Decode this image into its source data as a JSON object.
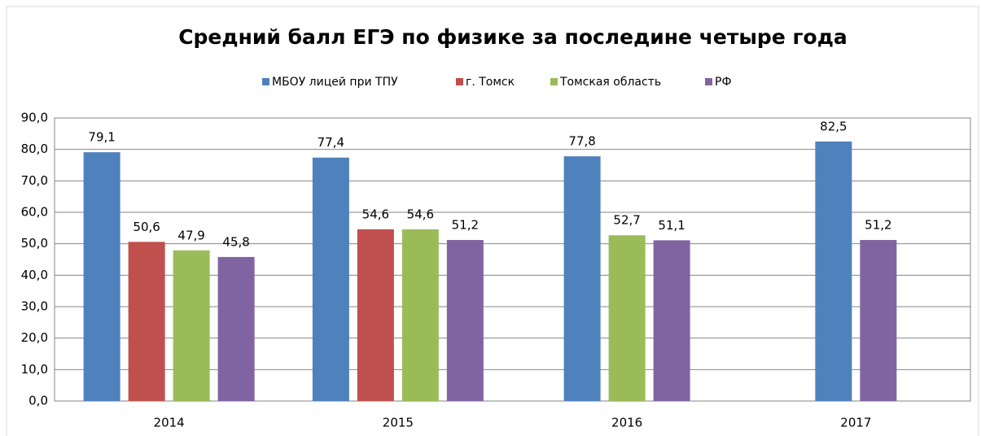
{
  "chart_data": {
    "type": "bar",
    "title": "Средний балл ЕГЭ по физике за последине четыре года",
    "categories": [
      "2014",
      "2015",
      "2016",
      "2017"
    ],
    "series": [
      {
        "name": "МБОУ лицей при ТПУ",
        "color": "#4f81bd",
        "values": [
          79.1,
          77.4,
          77.8,
          82.5
        ],
        "value_labels": [
          "79,1",
          "77,4",
          "77,8",
          "82,5"
        ]
      },
      {
        "name": "г. Томск",
        "color": "#c0504d",
        "values": [
          50.6,
          54.6,
          null,
          null
        ],
        "value_labels": [
          "50,6",
          "54,6",
          null,
          null
        ]
      },
      {
        "name": "Томская область",
        "color": "#9bbb59",
        "values": [
          47.9,
          54.6,
          52.7,
          null
        ],
        "value_labels": [
          "47,9",
          "54,6",
          "52,7",
          null
        ]
      },
      {
        "name": "РФ",
        "color": "#8064a2",
        "values": [
          45.8,
          51.2,
          51.1,
          51.2
        ],
        "value_labels": [
          "45,8",
          "51,2",
          "51,1",
          "51,2"
        ]
      }
    ],
    "ylim": [
      0,
      90
    ],
    "yticks": [
      {
        "value": 0,
        "label": "0,0"
      },
      {
        "value": 10,
        "label": "10,0"
      },
      {
        "value": 20,
        "label": "20,0"
      },
      {
        "value": 30,
        "label": "30,0"
      },
      {
        "value": 40,
        "label": "40,0"
      },
      {
        "value": 50,
        "label": "50,0"
      },
      {
        "value": 60,
        "label": "60,0"
      },
      {
        "value": 70,
        "label": "70,0"
      },
      {
        "value": 80,
        "label": "80,0"
      },
      {
        "value": 90,
        "label": "90,0"
      }
    ],
    "grid": true,
    "legend": "top"
  }
}
